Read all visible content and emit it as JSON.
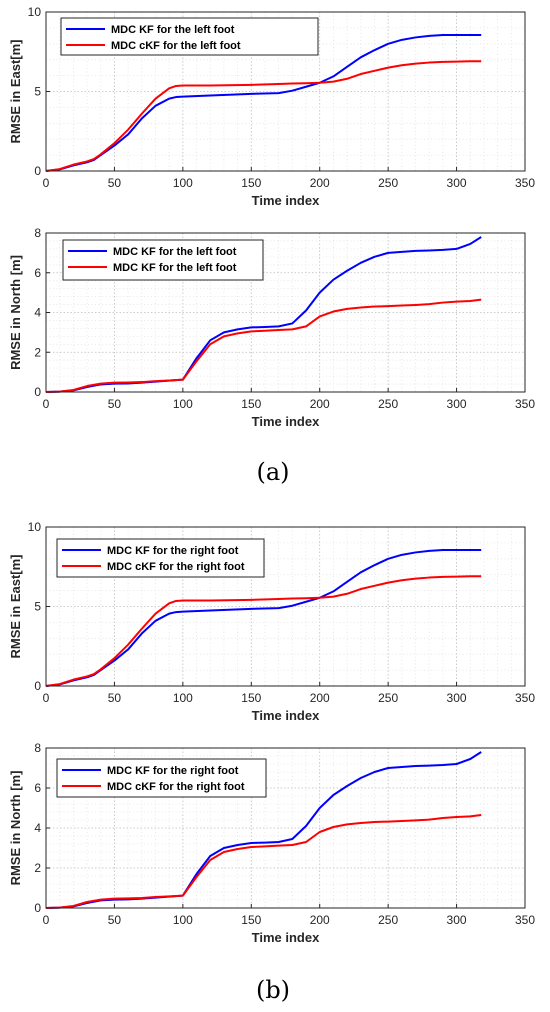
{
  "panels": [
    {
      "label": "(a)"
    },
    {
      "label": "(b)"
    }
  ],
  "chart_data": [
    {
      "type": "line",
      "xlabel": "Time index",
      "ylabel": "RMSE in East[m]",
      "xlim": [
        0,
        350
      ],
      "ylim": [
        0,
        10
      ],
      "xticks": [
        "0",
        "50",
        "100",
        "150",
        "200",
        "250",
        "300",
        "350"
      ],
      "yticks": [
        "0",
        "5",
        "10"
      ],
      "grid": true,
      "legend_position": "top-left",
      "series": [
        {
          "name": "MDC KF for the left foot",
          "color": "#0000ff",
          "x": [
            0,
            10,
            20,
            30,
            35,
            40,
            50,
            60,
            70,
            80,
            90,
            95,
            100,
            120,
            150,
            170,
            180,
            190,
            200,
            210,
            220,
            230,
            240,
            250,
            260,
            270,
            280,
            290,
            300,
            310,
            318
          ],
          "y": [
            0,
            0.1,
            0.35,
            0.55,
            0.7,
            1.0,
            1.6,
            2.3,
            3.3,
            4.1,
            4.55,
            4.65,
            4.68,
            4.75,
            4.85,
            4.9,
            5.05,
            5.3,
            5.55,
            5.95,
            6.55,
            7.15,
            7.6,
            8.0,
            8.25,
            8.4,
            8.5,
            8.55,
            8.55,
            8.55,
            8.55
          ]
        },
        {
          "name": "MDC cKF for the left foot",
          "color": "#ff0000",
          "x": [
            0,
            10,
            20,
            30,
            35,
            40,
            50,
            60,
            70,
            80,
            90,
            95,
            100,
            120,
            150,
            170,
            180,
            190,
            200,
            210,
            220,
            230,
            240,
            250,
            260,
            270,
            280,
            290,
            300,
            310,
            318
          ],
          "y": [
            0,
            0.12,
            0.4,
            0.6,
            0.75,
            1.05,
            1.75,
            2.6,
            3.6,
            4.55,
            5.2,
            5.35,
            5.38,
            5.38,
            5.42,
            5.47,
            5.5,
            5.52,
            5.55,
            5.62,
            5.8,
            6.1,
            6.3,
            6.5,
            6.65,
            6.75,
            6.82,
            6.86,
            6.88,
            6.9,
            6.9
          ]
        }
      ]
    },
    {
      "type": "line",
      "xlabel": "Time index",
      "ylabel": "RMSE in North [m]",
      "xlim": [
        0,
        350
      ],
      "ylim": [
        0,
        8
      ],
      "xticks": [
        "0",
        "50",
        "100",
        "150",
        "200",
        "250",
        "300",
        "350"
      ],
      "yticks": [
        "0",
        "2",
        "4",
        "6",
        "8"
      ],
      "grid": true,
      "legend_position": "top-left",
      "series": [
        {
          "name": "MDC KF for the left foot",
          "color": "#0000ff",
          "x": [
            0,
            10,
            20,
            30,
            40,
            50,
            60,
            70,
            80,
            90,
            100,
            110,
            120,
            130,
            140,
            150,
            160,
            170,
            180,
            190,
            200,
            210,
            220,
            230,
            240,
            250,
            260,
            270,
            280,
            290,
            300,
            310,
            318
          ],
          "y": [
            0,
            0.02,
            0.08,
            0.25,
            0.38,
            0.42,
            0.43,
            0.47,
            0.52,
            0.57,
            0.62,
            1.7,
            2.6,
            3.0,
            3.15,
            3.25,
            3.27,
            3.3,
            3.45,
            4.1,
            5.0,
            5.65,
            6.1,
            6.5,
            6.8,
            7.0,
            7.05,
            7.1,
            7.12,
            7.15,
            7.2,
            7.45,
            7.8
          ]
        },
        {
          "name": "MDC KF for the left foot",
          "color": "#ff0000",
          "x": [
            0,
            10,
            20,
            30,
            40,
            50,
            60,
            70,
            80,
            90,
            100,
            110,
            120,
            130,
            140,
            150,
            160,
            170,
            180,
            190,
            200,
            210,
            220,
            230,
            240,
            250,
            260,
            270,
            280,
            290,
            300,
            310,
            318
          ],
          "y": [
            0,
            0.02,
            0.1,
            0.3,
            0.42,
            0.47,
            0.48,
            0.5,
            0.55,
            0.58,
            0.62,
            1.55,
            2.4,
            2.8,
            2.95,
            3.05,
            3.08,
            3.12,
            3.15,
            3.3,
            3.8,
            4.05,
            4.18,
            4.25,
            4.3,
            4.32,
            4.35,
            4.38,
            4.42,
            4.5,
            4.55,
            4.58,
            4.65
          ]
        }
      ]
    },
    {
      "type": "line",
      "xlabel": "Time index",
      "ylabel": "RMSE in East[m]",
      "xlim": [
        0,
        350
      ],
      "ylim": [
        0,
        10
      ],
      "xticks": [
        "0",
        "50",
        "100",
        "150",
        "200",
        "250",
        "300",
        "350"
      ],
      "yticks": [
        "0",
        "5",
        "10"
      ],
      "grid": true,
      "legend_position": "top-left",
      "series": [
        {
          "name": "MDC KF for the right foot",
          "color": "#0000ff",
          "x": [
            0,
            10,
            20,
            30,
            35,
            40,
            50,
            60,
            70,
            80,
            90,
            95,
            100,
            120,
            150,
            170,
            180,
            190,
            200,
            210,
            220,
            230,
            240,
            250,
            260,
            270,
            280,
            290,
            300,
            310,
            318
          ],
          "y": [
            0,
            0.1,
            0.35,
            0.55,
            0.7,
            1.0,
            1.6,
            2.3,
            3.3,
            4.1,
            4.55,
            4.65,
            4.68,
            4.75,
            4.85,
            4.9,
            5.05,
            5.3,
            5.55,
            5.95,
            6.55,
            7.15,
            7.6,
            8.0,
            8.25,
            8.4,
            8.5,
            8.55,
            8.55,
            8.55,
            8.55
          ]
        },
        {
          "name": "MDC cKF for the right foot",
          "color": "#ff0000",
          "x": [
            0,
            10,
            20,
            30,
            35,
            40,
            50,
            60,
            70,
            80,
            90,
            95,
            100,
            120,
            150,
            170,
            180,
            190,
            200,
            210,
            220,
            230,
            240,
            250,
            260,
            270,
            280,
            290,
            300,
            310,
            318
          ],
          "y": [
            0,
            0.12,
            0.4,
            0.6,
            0.75,
            1.05,
            1.75,
            2.6,
            3.6,
            4.55,
            5.2,
            5.35,
            5.38,
            5.38,
            5.42,
            5.47,
            5.5,
            5.52,
            5.55,
            5.62,
            5.8,
            6.1,
            6.3,
            6.5,
            6.65,
            6.75,
            6.82,
            6.86,
            6.88,
            6.9,
            6.9
          ]
        }
      ]
    },
    {
      "type": "line",
      "xlabel": "Time index",
      "ylabel": "RMSE in North [m]",
      "xlim": [
        0,
        350
      ],
      "ylim": [
        0,
        8
      ],
      "xticks": [
        "0",
        "50",
        "100",
        "150",
        "200",
        "250",
        "300",
        "350"
      ],
      "yticks": [
        "0",
        "2",
        "4",
        "6",
        "8"
      ],
      "grid": true,
      "legend_position": "top-left",
      "series": [
        {
          "name": "MDC KF for the right foot",
          "color": "#0000ff",
          "x": [
            0,
            10,
            20,
            30,
            40,
            50,
            60,
            70,
            80,
            90,
            100,
            110,
            120,
            130,
            140,
            150,
            160,
            170,
            180,
            190,
            200,
            210,
            220,
            230,
            240,
            250,
            260,
            270,
            280,
            290,
            300,
            310,
            318
          ],
          "y": [
            0,
            0.02,
            0.08,
            0.25,
            0.38,
            0.42,
            0.43,
            0.47,
            0.52,
            0.57,
            0.62,
            1.7,
            2.6,
            3.0,
            3.15,
            3.25,
            3.27,
            3.3,
            3.45,
            4.1,
            5.0,
            5.65,
            6.1,
            6.5,
            6.8,
            7.0,
            7.05,
            7.1,
            7.12,
            7.15,
            7.2,
            7.45,
            7.8
          ]
        },
        {
          "name": "MDC cKF for the right foot",
          "color": "#ff0000",
          "x": [
            0,
            10,
            20,
            30,
            40,
            50,
            60,
            70,
            80,
            90,
            100,
            110,
            120,
            130,
            140,
            150,
            160,
            170,
            180,
            190,
            200,
            210,
            220,
            230,
            240,
            250,
            260,
            270,
            280,
            290,
            300,
            310,
            318
          ],
          "y": [
            0,
            0.02,
            0.1,
            0.3,
            0.42,
            0.47,
            0.48,
            0.5,
            0.55,
            0.58,
            0.62,
            1.55,
            2.4,
            2.8,
            2.95,
            3.05,
            3.08,
            3.12,
            3.15,
            3.3,
            3.8,
            4.05,
            4.18,
            4.25,
            4.3,
            4.32,
            4.35,
            4.38,
            4.42,
            4.5,
            4.55,
            4.58,
            4.65
          ]
        }
      ]
    }
  ]
}
